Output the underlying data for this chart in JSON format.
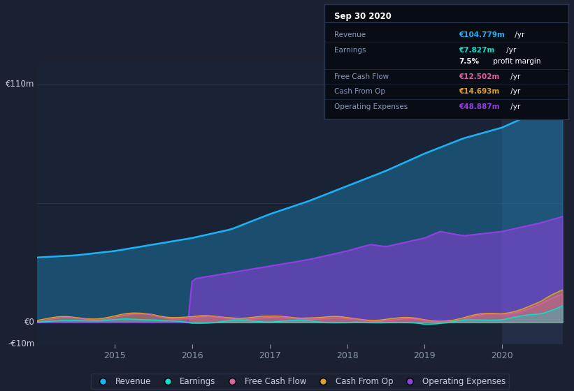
{
  "bg_color": "#1c2132",
  "plot_bg_color": "#1a2235",
  "grid_color": "#2a3550",
  "ylabel_top": "€110m",
  "ylabel_zero": "€0",
  "ylabel_neg": "-€10m",
  "x_labels": [
    "2015",
    "2016",
    "2017",
    "2018",
    "2019",
    "2020"
  ],
  "ylim": [
    -10,
    120
  ],
  "legend": [
    {
      "label": "Revenue",
      "color": "#1ab3f5"
    },
    {
      "label": "Earnings",
      "color": "#00e5cc"
    },
    {
      "label": "Free Cash Flow",
      "color": "#e060a0"
    },
    {
      "label": "Cash From Op",
      "color": "#e0a020"
    },
    {
      "label": "Operating Expenses",
      "color": "#9040e0"
    }
  ],
  "tooltip": {
    "date": "Sep 30 2020",
    "revenue_label": "Revenue",
    "revenue_val": "€104.779m",
    "revenue_yr": " /yr",
    "earnings_label": "Earnings",
    "earnings_val": "€7.827m",
    "earnings_yr": " /yr",
    "margin": "7.5%",
    "margin_txt": " profit margin",
    "fcf_label": "Free Cash Flow",
    "fcf_val": "€12.502m",
    "fcf_yr": " /yr",
    "cashfromop_label": "Cash From Op",
    "cashfromop_val": "€14.693m",
    "cashfromop_yr": " /yr",
    "opex_label": "Operating Expenses",
    "opex_val": "€48.887m",
    "opex_yr": " /yr"
  },
  "revenue_color": "#1ab3f5",
  "earnings_color": "#00e5cc",
  "fcf_color": "#e060a0",
  "cashfromop_color": "#e0a020",
  "opex_color": "#9040e0",
  "highlight_color": "#2a3550"
}
